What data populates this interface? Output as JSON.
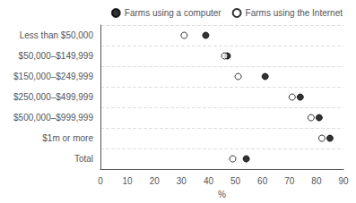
{
  "chart_data": {
    "type": "scatter",
    "orientation": "horizontal",
    "categories": [
      "Less than $50,000",
      "$50,000–$149,999",
      "$150,000–$249,999",
      "$250,000–$499,999",
      "$500,000–$999,999",
      "$1m or more",
      "Total"
    ],
    "series": [
      {
        "name": "Farms using a computer",
        "color": "#000000",
        "marker": "filled",
        "values": [
          39,
          47,
          61,
          74,
          81,
          85,
          54
        ]
      },
      {
        "name": "Farms using the Internet",
        "color": "#000000",
        "marker": "open",
        "values": [
          31,
          46,
          51,
          71,
          78,
          82,
          49
        ]
      }
    ],
    "xlabel": "%",
    "xlim": [
      0,
      90
    ],
    "xticks": [
      0,
      10,
      20,
      30,
      40,
      50,
      60,
      70,
      80,
      90
    ],
    "grid": true,
    "legend": "upper right"
  }
}
